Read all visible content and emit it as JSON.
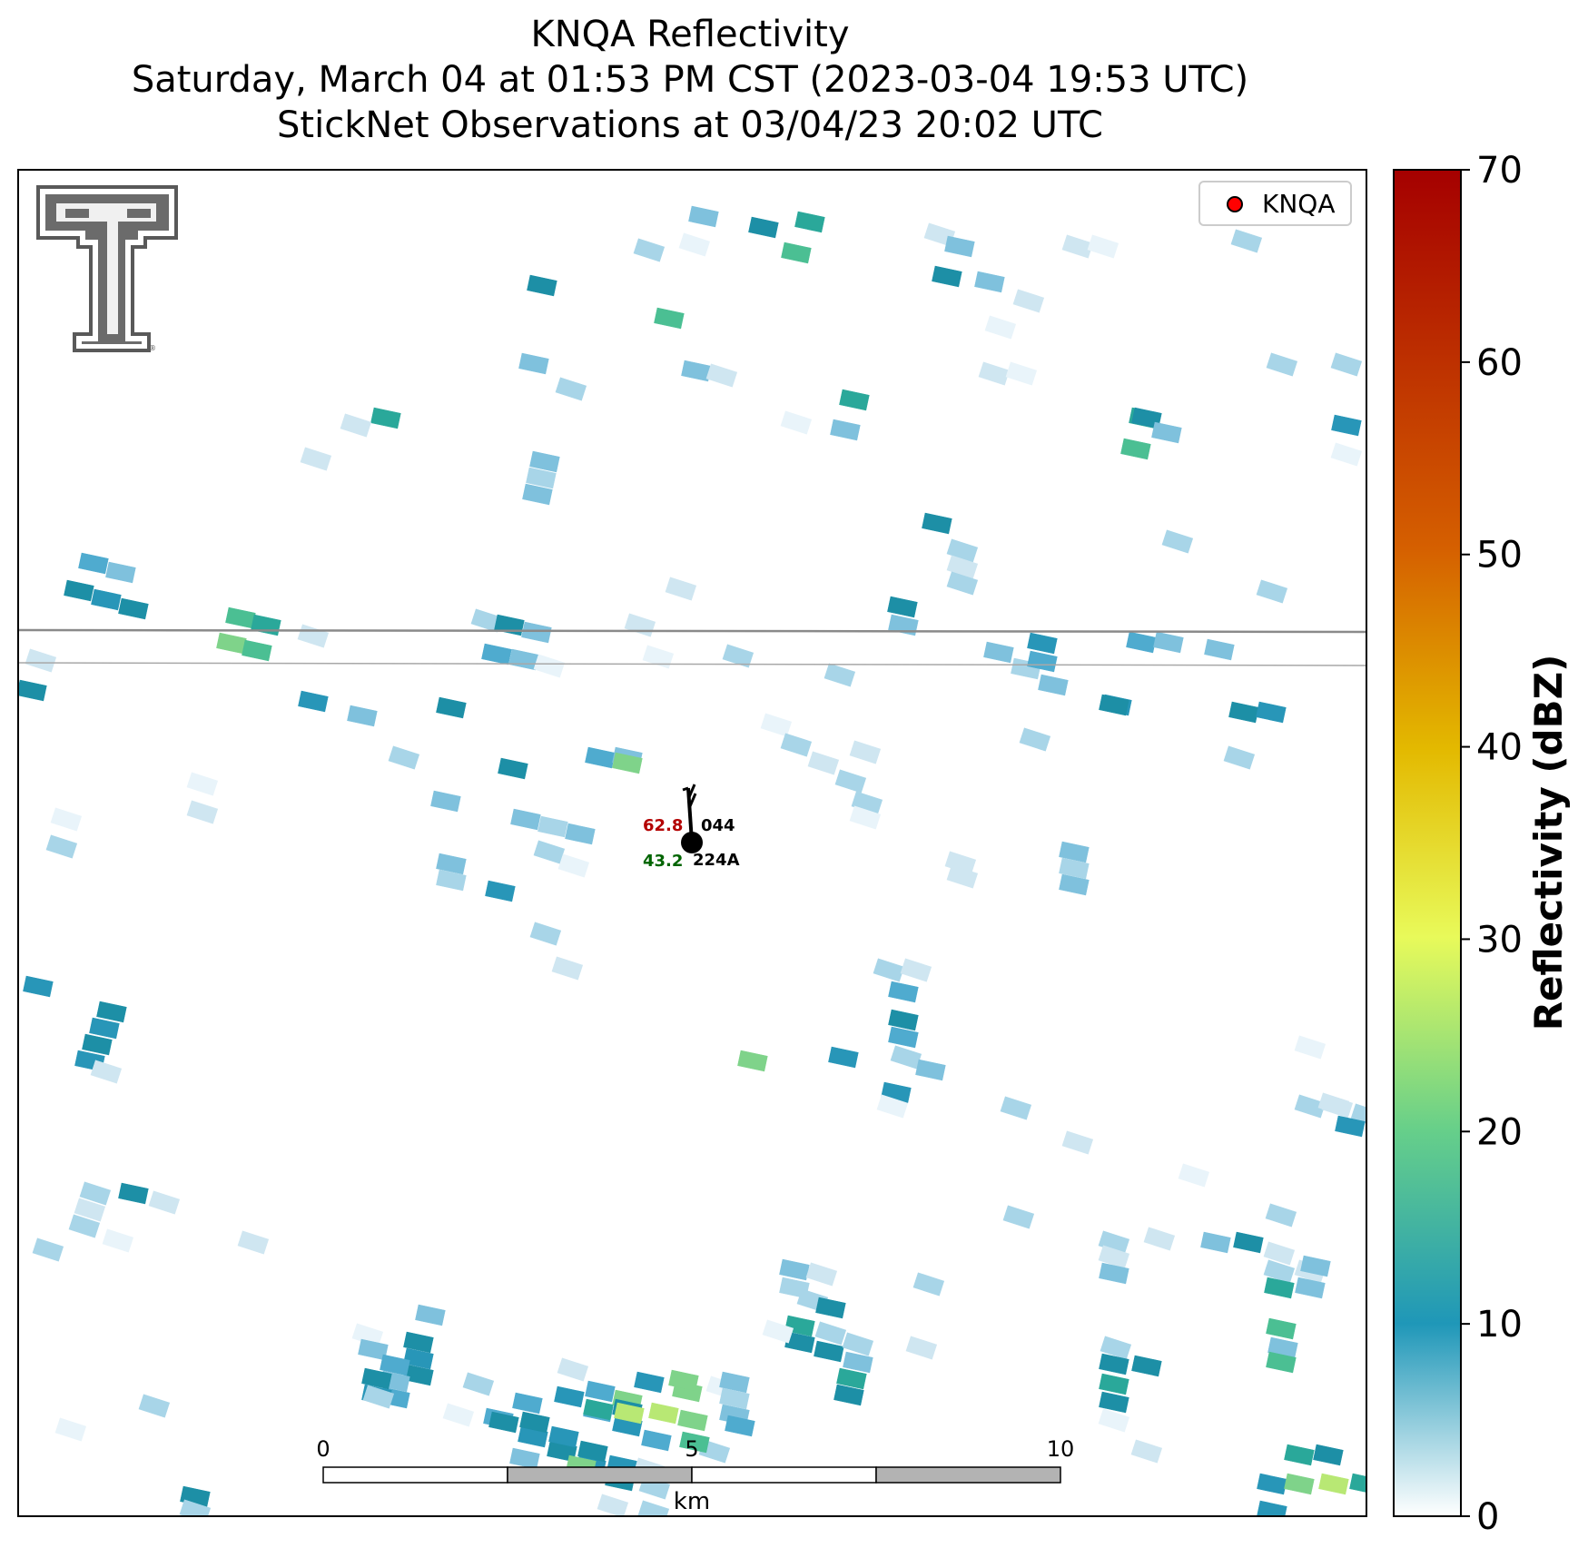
{
  "title": {
    "line1": "KNQA Reflectivity",
    "line2": "Saturday, March 04 at 01:53 PM CST (2023-03-04 19:53 UTC)",
    "line3": "StickNet Observations at 03/04/23 20:02 UTC"
  },
  "legend": {
    "label": "KNQA",
    "marker_color": "#ff0000"
  },
  "station": {
    "temperature": "62.8",
    "pressure": "044",
    "dewpoint": "43.2",
    "id": "224A",
    "temp_color": "#b30000",
    "dew_color": "#006400"
  },
  "scale_bar": {
    "ticks": [
      "0",
      "5",
      "10"
    ],
    "unit": "km"
  },
  "colorbar": {
    "label": "Reflectivity (dBZ)",
    "ticks": [
      "0",
      "10",
      "20",
      "30",
      "40",
      "50",
      "60",
      "70"
    ],
    "min": 0,
    "max": 70,
    "stops": [
      "#ffffff",
      "#1f97b8",
      "#66cf8a",
      "#e8fa5a",
      "#e3b900",
      "#d55f00",
      "#a50000"
    ]
  },
  "logo": {
    "name": "texas-tech-double-t-logo",
    "color": "#555555"
  }
}
